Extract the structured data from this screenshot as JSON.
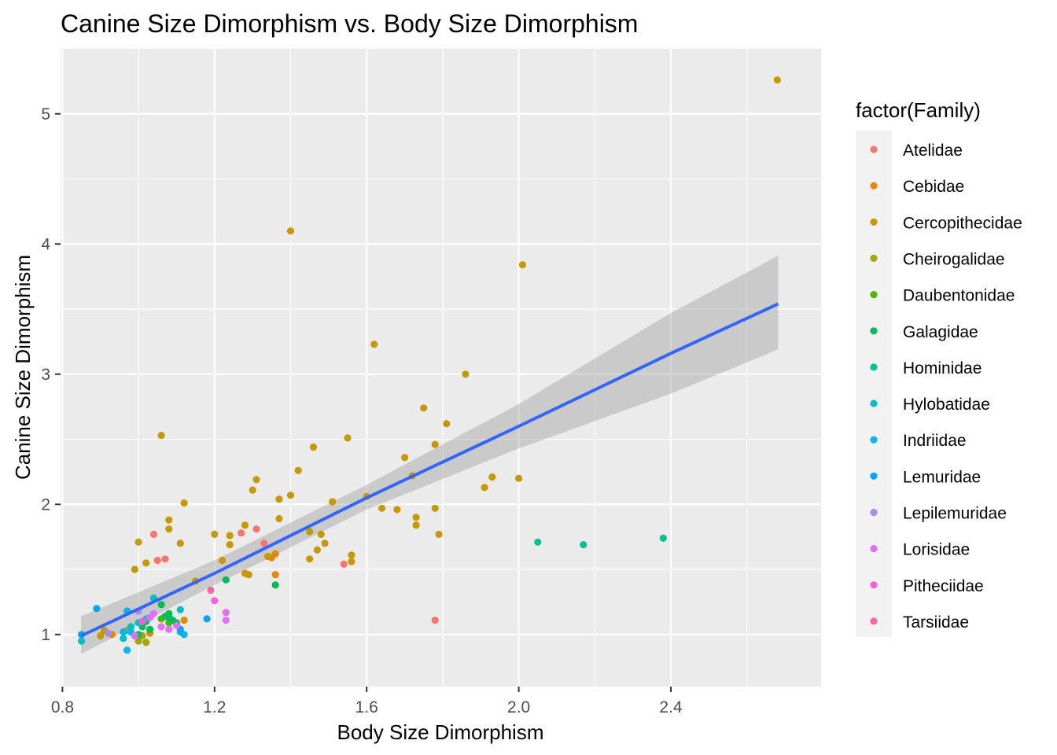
{
  "chart_data": {
    "type": "scatter",
    "title": "Canine Size Dimorphism vs. Body Size Dimorphism",
    "xlabel": "Body Size Dimorphism",
    "ylabel": "Canine Size Dimorphism",
    "xlim": [
      0.795,
      2.795
    ],
    "ylim": [
      0.6,
      5.5
    ],
    "x_ticks": [
      0.8,
      1.2,
      1.6,
      2.0,
      2.4
    ],
    "x_tick_labels": [
      "0.8",
      "1.2",
      "1.6",
      "2.0",
      "2.4"
    ],
    "y_ticks": [
      1,
      2,
      3,
      4,
      5
    ],
    "y_tick_labels": [
      "1",
      "2",
      "3",
      "4",
      "5"
    ],
    "grid": true,
    "legend": {
      "title": "factor(Family)",
      "placement": "right"
    },
    "series": [
      {
        "name": "Atelidae",
        "color": "#F8766D",
        "points": [
          [
            1.04,
            1.77
          ],
          [
            1.05,
            1.57
          ],
          [
            1.07,
            1.58
          ],
          [
            1.27,
            1.78
          ],
          [
            1.31,
            1.81
          ],
          [
            1.33,
            1.7
          ],
          [
            1.54,
            1.54
          ],
          [
            1.78,
            1.11
          ]
        ]
      },
      {
        "name": "Cebidae",
        "color": "#E38900",
        "points": [
          [
            0.93,
            1.0
          ],
          [
            1.03,
            1.01
          ],
          [
            1.1,
            1.08
          ],
          [
            1.12,
            1.11
          ],
          [
            1.28,
            1.47
          ],
          [
            1.35,
            1.59
          ],
          [
            1.36,
            1.62
          ],
          [
            1.36,
            1.46
          ]
        ]
      },
      {
        "name": "Cercopithecidae",
        "color": "#C49A00",
        "points": [
          [
            2.68,
            5.26
          ],
          [
            1.4,
            4.1
          ],
          [
            2.01,
            3.84
          ],
          [
            1.62,
            3.23
          ],
          [
            1.86,
            3.0
          ],
          [
            1.75,
            2.74
          ],
          [
            1.81,
            2.62
          ],
          [
            1.06,
            2.53
          ],
          [
            1.55,
            2.51
          ],
          [
            1.78,
            2.46
          ],
          [
            1.46,
            2.44
          ],
          [
            1.7,
            2.36
          ],
          [
            1.42,
            2.26
          ],
          [
            1.72,
            2.22
          ],
          [
            1.93,
            2.21
          ],
          [
            2.0,
            2.2
          ],
          [
            1.31,
            2.19
          ],
          [
            1.91,
            2.13
          ],
          [
            1.3,
            2.11
          ],
          [
            1.4,
            2.07
          ],
          [
            1.6,
            2.06
          ],
          [
            1.37,
            2.04
          ],
          [
            1.51,
            2.02
          ],
          [
            1.12,
            2.01
          ],
          [
            1.64,
            1.97
          ],
          [
            1.78,
            1.97
          ],
          [
            1.68,
            1.96
          ],
          [
            1.73,
            1.9
          ],
          [
            1.37,
            1.89
          ],
          [
            1.08,
            1.88
          ],
          [
            1.28,
            1.84
          ],
          [
            1.73,
            1.84
          ],
          [
            1.08,
            1.81
          ],
          [
            1.45,
            1.79
          ],
          [
            1.2,
            1.77
          ],
          [
            1.48,
            1.77
          ],
          [
            1.24,
            1.76
          ],
          [
            1.79,
            1.77
          ],
          [
            1.0,
            1.71
          ],
          [
            1.49,
            1.7
          ],
          [
            1.11,
            1.7
          ],
          [
            1.24,
            1.69
          ],
          [
            1.47,
            1.65
          ],
          [
            1.56,
            1.61
          ],
          [
            1.34,
            1.6
          ],
          [
            1.45,
            1.58
          ],
          [
            1.22,
            1.57
          ],
          [
            1.02,
            1.55
          ],
          [
            1.56,
            1.56
          ],
          [
            0.99,
            1.5
          ],
          [
            1.29,
            1.46
          ],
          [
            1.15,
            1.41
          ],
          [
            0.91,
            1.03
          ],
          [
            0.9,
            0.99
          ]
        ]
      },
      {
        "name": "Cheirogalidae",
        "color": "#A3A500",
        "points": [
          [
            1.0,
            0.95
          ],
          [
            1.02,
            0.94
          ],
          [
            1.01,
            0.99
          ],
          [
            0.97,
            1.03
          ]
        ]
      },
      {
        "name": "Daubentonidae",
        "color": "#53B400",
        "points": [
          [
            1.06,
            1.12
          ],
          [
            1.08,
            1.09
          ]
        ]
      },
      {
        "name": "Galagidae",
        "color": "#00BC56",
        "points": [
          [
            1.06,
            1.23
          ],
          [
            1.08,
            1.16
          ],
          [
            1.07,
            1.14
          ],
          [
            1.1,
            1.09
          ],
          [
            1.01,
            1.06
          ],
          [
            1.0,
            1.0
          ],
          [
            1.03,
            1.04
          ],
          [
            1.08,
            1.13
          ],
          [
            1.09,
            1.11
          ],
          [
            1.02,
            1.1
          ],
          [
            1.36,
            1.38
          ],
          [
            1.23,
            1.42
          ]
        ]
      },
      {
        "name": "Hominidae",
        "color": "#00C094",
        "points": [
          [
            2.05,
            1.71
          ],
          [
            2.17,
            1.69
          ],
          [
            2.38,
            1.74
          ]
        ]
      },
      {
        "name": "Hylobatidae",
        "color": "#00BFC4",
        "points": [
          [
            1.04,
            1.28
          ],
          [
            1.11,
            1.19
          ],
          [
            1.02,
            1.12
          ],
          [
            0.96,
            0.97
          ],
          [
            0.98,
            1.06
          ],
          [
            1.11,
            1.02
          ],
          [
            1.0,
            1.09
          ],
          [
            0.85,
            0.95
          ]
        ]
      },
      {
        "name": "Indriidae",
        "color": "#00B6EB",
        "points": [
          [
            0.97,
            1.18
          ],
          [
            0.98,
            1.02
          ],
          [
            0.97,
            0.88
          ],
          [
            0.96,
            1.02
          ],
          [
            1.12,
            1.0
          ]
        ]
      },
      {
        "name": "Lemuridae",
        "color": "#06A4FF",
        "points": [
          [
            0.89,
            1.2
          ],
          [
            0.85,
            1.0
          ],
          [
            1.18,
            1.12
          ],
          [
            1.11,
            1.04
          ]
        ]
      },
      {
        "name": "Lepilemuridae",
        "color": "#A58AFF",
        "points": [
          [
            1.0,
            1.18
          ],
          [
            0.92,
            1.01
          ]
        ]
      },
      {
        "name": "Lorisidae",
        "color": "#DF70F8",
        "points": [
          [
            1.23,
            1.17
          ],
          [
            1.23,
            1.11
          ],
          [
            1.03,
            1.13
          ],
          [
            1.06,
            1.06
          ],
          [
            0.99,
            0.99
          ],
          [
            1.08,
            1.04
          ],
          [
            1.1,
            1.07
          ],
          [
            1.04,
            1.16
          ]
        ]
      },
      {
        "name": "Pitheciidae",
        "color": "#FB61D7",
        "points": [
          [
            1.2,
            1.26
          ],
          [
            1.01,
            1.1
          ]
        ]
      },
      {
        "name": "Tarsiidae",
        "color": "#FF66A8",
        "points": [
          [
            1.19,
            1.34
          ]
        ]
      }
    ],
    "regression": {
      "color": "#3366FF",
      "ribbon_color": "#999999",
      "x": [
        0.849,
        1.2,
        1.6,
        2.0,
        2.4,
        2.682
      ],
      "y": [
        0.99,
        1.47,
        2.05,
        2.6,
        3.16,
        3.54
      ],
      "ymin": [
        0.85,
        1.38,
        1.96,
        2.43,
        2.85,
        3.19
      ],
      "ymax": [
        1.14,
        1.57,
        2.15,
        2.77,
        3.47,
        3.91
      ]
    }
  }
}
